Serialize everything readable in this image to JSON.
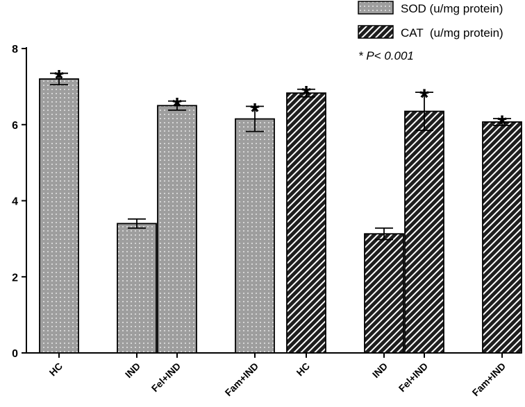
{
  "chart_data": {
    "type": "bar",
    "title": "",
    "xlabel": "",
    "ylabel": "",
    "ylim": [
      0,
      8
    ],
    "yticks": [
      0,
      2,
      4,
      6,
      8
    ],
    "grid": false,
    "legend_position": "top-right",
    "significance_note": "* P< 0.001",
    "groups": [
      {
        "name": "SOD (u/mg protein)",
        "pattern": "dotted-grey",
        "categories": [
          "HC",
          "IND",
          "Fel+IND",
          "Fam+IND"
        ],
        "values": [
          7.2,
          3.4,
          6.5,
          6.15
        ],
        "errors": [
          0.15,
          0.12,
          0.12,
          0.33
        ],
        "significant": [
          true,
          false,
          true,
          true
        ]
      },
      {
        "name": "CAT  (u/mg protein)",
        "pattern": "diagonal-hatch",
        "categories": [
          "HC",
          "IND",
          "Fel+IND",
          "Fam+IND"
        ],
        "values": [
          6.83,
          3.13,
          6.35,
          6.07
        ],
        "errors": [
          0.1,
          0.15,
          0.5,
          0.09
        ],
        "significant": [
          true,
          false,
          true,
          true
        ]
      }
    ]
  }
}
